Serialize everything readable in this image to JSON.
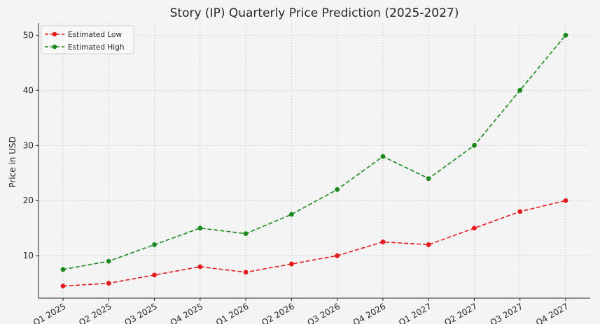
{
  "chart_data": {
    "type": "line",
    "title": "Story (IP) Quarterly Price Prediction (2025-2027)",
    "xlabel": "",
    "ylabel": "Price in USD",
    "categories": [
      "Q1 2025",
      "Q2 2025",
      "Q3 2025",
      "Q4 2025",
      "Q1 2026",
      "Q2 2026",
      "Q3 2026",
      "Q4 2026",
      "Q1 2027",
      "Q2 2027",
      "Q3 2027",
      "Q4 2027"
    ],
    "yticks": [
      10,
      20,
      30,
      40,
      50
    ],
    "ylim": [
      2.3,
      52.2
    ],
    "grid": true,
    "legend": "top-left",
    "series": [
      {
        "name": "Estimated Low",
        "color": "#e41a1c",
        "values": [
          4.5,
          5,
          6.5,
          8,
          7,
          8.5,
          10,
          12.5,
          12,
          15,
          18,
          20
        ]
      },
      {
        "name": "Estimated High",
        "color": "#1a8a1a",
        "values": [
          7.5,
          9,
          12,
          15,
          14,
          17.5,
          22,
          28,
          24,
          30,
          40,
          50
        ]
      }
    ]
  }
}
